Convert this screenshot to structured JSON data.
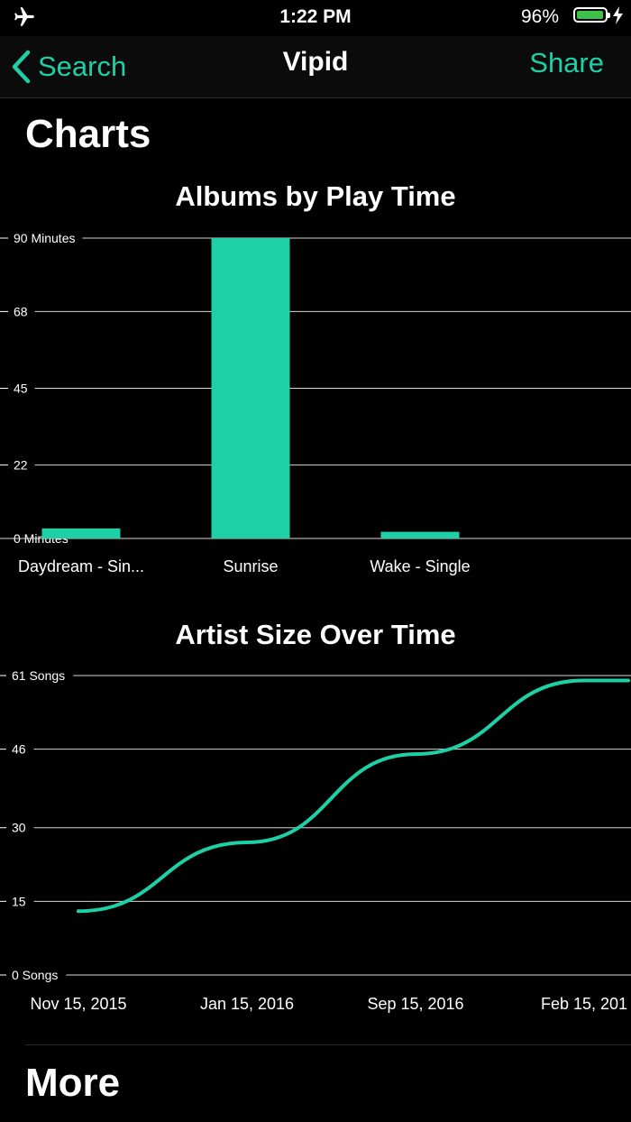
{
  "status_bar": {
    "time": "1:22 PM",
    "battery_percent": "96%",
    "battery_level": 0.96,
    "accent": "#3ec14a"
  },
  "nav": {
    "back_label": "Search",
    "title": "Vipid",
    "action_label": "Share",
    "tint": "#1dd0a6"
  },
  "sections": {
    "charts_title": "Charts",
    "more_title": "More"
  },
  "chart_data": [
    {
      "type": "bar",
      "title": "Albums by Play Time",
      "categories": [
        "Daydream - Sin...",
        "Sunrise",
        "Wake - Single"
      ],
      "values": [
        3,
        90,
        2
      ],
      "ylim": [
        0,
        90
      ],
      "yticks": [
        {
          "value": 0,
          "label": "0 Minutes"
        },
        {
          "value": 22,
          "label": "22"
        },
        {
          "value": 45,
          "label": "45"
        },
        {
          "value": 68,
          "label": "68"
        },
        {
          "value": 90,
          "label": "90 Minutes"
        }
      ],
      "color": "#1dd0a6",
      "grid": true
    },
    {
      "type": "line",
      "title": "Artist Size Over Time",
      "x": [
        "Nov 15, 2015",
        "Jan 15, 2016",
        "Sep 15, 2016",
        "Feb 15, 201"
      ],
      "values": [
        13,
        27,
        45,
        60
      ],
      "ylim": [
        0,
        61
      ],
      "yticks": [
        {
          "value": 0,
          "label": "0 Songs"
        },
        {
          "value": 15,
          "label": "15"
        },
        {
          "value": 30,
          "label": "30"
        },
        {
          "value": 46,
          "label": "46"
        },
        {
          "value": 61,
          "label": "61 Songs"
        }
      ],
      "color": "#1dd0a6",
      "grid": true
    }
  ]
}
